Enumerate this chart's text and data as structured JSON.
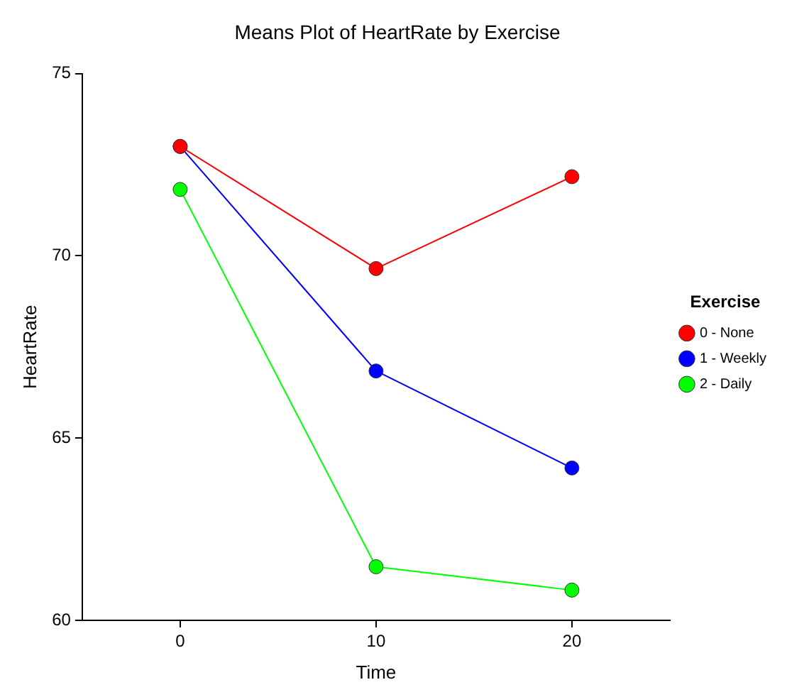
{
  "chart_data": {
    "type": "line",
    "title": "Means Plot of HeartRate by Exercise",
    "xlabel": "Time",
    "ylabel": "HeartRate",
    "legend_title": "Exercise",
    "x": [
      0,
      10,
      20
    ],
    "series": [
      {
        "name": "0 - None",
        "color": "#ff0000",
        "values": [
          73.0,
          69.65,
          72.17
        ]
      },
      {
        "name": "1 - Weekly",
        "color": "#0000ff",
        "values": [
          73.0,
          66.84,
          64.18
        ]
      },
      {
        "name": "2 - Daily",
        "color": "#00ff00",
        "values": [
          71.82,
          61.47,
          60.83
        ]
      }
    ],
    "xlim": [
      -5,
      25
    ],
    "xticks": [
      0,
      10,
      20
    ],
    "ylim": [
      60,
      75
    ],
    "yticks": [
      60,
      65,
      70,
      75
    ],
    "grid": false,
    "legend": "right",
    "marker": "circle",
    "line_style": "solid"
  }
}
